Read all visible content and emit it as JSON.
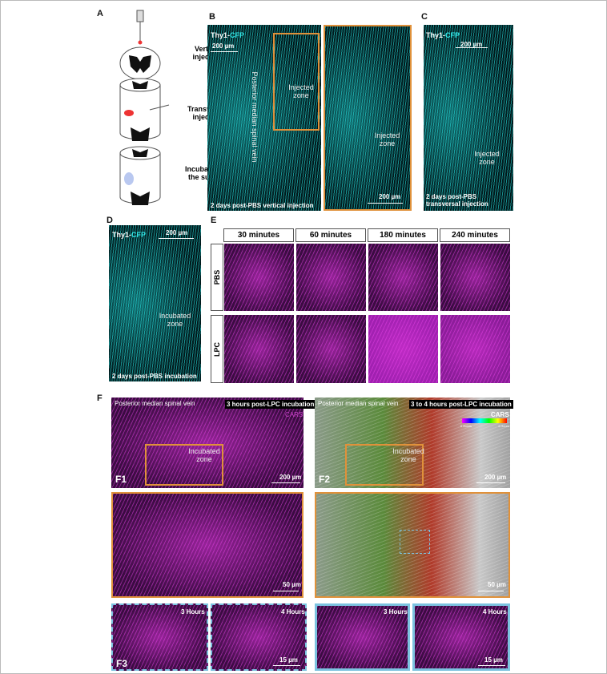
{
  "panel_a": {
    "label": "A",
    "steps": [
      "Vertical injection",
      "Transversal injection",
      "Incubation at the surface"
    ]
  },
  "panel_b": {
    "label": "B",
    "marker": {
      "prefix": "Thy1-",
      "reporter": "CFP"
    },
    "scale_bar": "200 µm",
    "vein": "Posterior median spinal vein",
    "zone": "Injected zone",
    "zoom_zone": "Injected zone",
    "zoom_scale_bar": "200 µm",
    "caption": "2 days post-PBS vertical injection"
  },
  "panel_c": {
    "label": "C",
    "marker": {
      "prefix": "Thy1-",
      "reporter": "CFP"
    },
    "scale_bar": "200 µm",
    "zone": "Injected zone",
    "caption": "2 days post-PBS transversal injection"
  },
  "panel_d": {
    "label": "D",
    "marker": {
      "prefix": "Thy1-",
      "reporter": "CFP"
    },
    "scale_bar": "200 µm",
    "zone": "Incubated zone",
    "caption": "2 days post-PBS incubation"
  },
  "panel_e": {
    "label": "E",
    "columns": [
      "30 minutes",
      "60 minutes",
      "180 minutes",
      "240 minutes"
    ],
    "rows": [
      "PBS",
      "LPC"
    ]
  },
  "panel_f": {
    "label": "F",
    "f1": {
      "vein": "Posterior median spinal vein",
      "time": "3 hours post-LPC incubation",
      "modality": "CARS",
      "zone": "Incubated zone",
      "tag": "F1",
      "scale_bar": "200 µm",
      "zoom_scale_bar": "50 µm"
    },
    "f2": {
      "vein": "Posterior median spinal vein",
      "time": "3 to 4 hours post-LPC incubation",
      "modality": "CARS",
      "colorbar": [
        "0 Hours",
        "4 Hours"
      ],
      "zone": "Incubated zone",
      "tag": "F2",
      "scale_bar": "200 µm",
      "zoom_scale_bar": "50 µm"
    },
    "f3": {
      "tag": "F3",
      "tiles": [
        {
          "time": "3 Hours"
        },
        {
          "time": "4 Hours",
          "scale_bar": "15 µm"
        },
        {
          "time": "3 Hours"
        },
        {
          "time": "4 Hours",
          "scale_bar": "15 µm"
        }
      ]
    }
  }
}
